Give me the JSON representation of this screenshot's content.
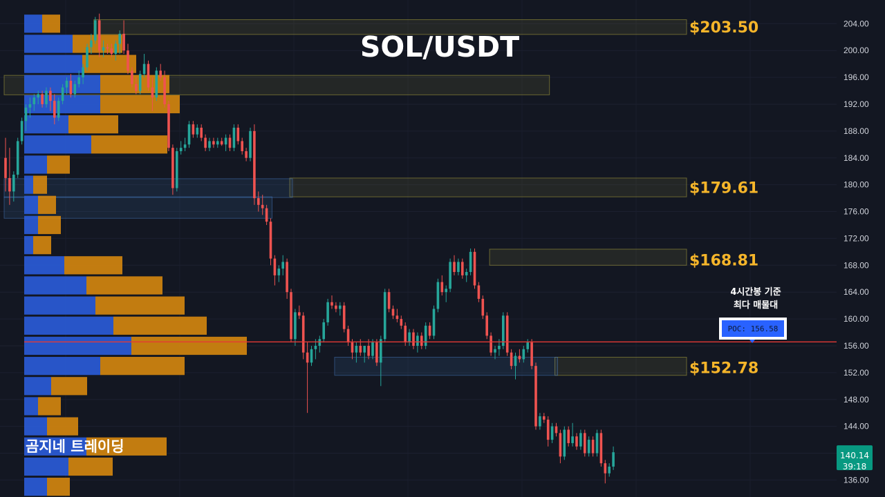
{
  "title": "SOL/USDT",
  "watermark": "곰지네 트레이딩",
  "poc": {
    "label": "POC: 156.58",
    "value": 156.58,
    "note_line1": "4시간봉 기준",
    "note_line2": "최다 매물대"
  },
  "current": {
    "price": "140.14",
    "countdown": "39:18",
    "value": 140.14
  },
  "colors": {
    "background": "#131722",
    "up": "#26a69a",
    "down": "#ef5350",
    "level_text": "#f5b52a",
    "poc_line": "#e53935",
    "poc_box": "#2962ff",
    "vp_buy": "#2a5bd7",
    "vp_sell": "#d6870e"
  },
  "chart_data": {
    "type": "candlestick",
    "y_axis": {
      "ylim": [
        134.5,
        206.5
      ],
      "ticks": [
        "204.00",
        "200.00",
        "196.00",
        "192.00",
        "188.00",
        "184.00",
        "180.00",
        "176.00",
        "172.00",
        "168.00",
        "164.00",
        "160.00",
        "156.00",
        "152.00",
        "148.00",
        "144.00",
        "140.00",
        "136.00"
      ]
    },
    "levels": [
      {
        "label": "$203.50",
        "value": 203.5
      },
      {
        "label": "$179.61",
        "value": 179.61
      },
      {
        "label": "$168.81",
        "value": 168.81
      },
      {
        "label": "$152.78",
        "value": 152.78
      }
    ],
    "zones": [
      {
        "kind": "gold",
        "low": 202.4,
        "high": 204.6,
        "start_bar": 22,
        "end_bar": 999
      },
      {
        "kind": "gold",
        "low": 193.4,
        "high": 196.3,
        "start_bar": 0,
        "end_bar": 133
      },
      {
        "kind": "gold",
        "low": 178.2,
        "high": 181.0,
        "start_bar": 70,
        "end_bar": 999
      },
      {
        "kind": "gold",
        "low": 168.0,
        "high": 170.4,
        "start_bar": 119,
        "end_bar": 999
      },
      {
        "kind": "gold",
        "low": 151.6,
        "high": 154.3,
        "start_bar": 135,
        "end_bar": 999
      },
      {
        "kind": "blue",
        "low": 178.1,
        "high": 180.9,
        "start_bar": 0,
        "end_bar": 70
      },
      {
        "kind": "blue",
        "low": 175.0,
        "high": 178.2,
        "start_bar": 0,
        "end_bar": 65
      },
      {
        "kind": "blue",
        "low": 151.6,
        "high": 154.3,
        "start_bar": 81,
        "end_bar": 135
      }
    ],
    "volume_profile": [
      {
        "price": 204.0,
        "buy": 26,
        "sell": 26
      },
      {
        "price": 201.0,
        "buy": 70,
        "sell": 72
      },
      {
        "price": 198.0,
        "buy": 84,
        "sell": 78
      },
      {
        "price": 195.0,
        "buy": 110,
        "sell": 100
      },
      {
        "price": 192.0,
        "buy": 110,
        "sell": 115
      },
      {
        "price": 189.0,
        "buy": 64,
        "sell": 72
      },
      {
        "price": 186.0,
        "buy": 97,
        "sell": 110
      },
      {
        "price": 183.0,
        "buy": 33,
        "sell": 33
      },
      {
        "price": 180.0,
        "buy": 13,
        "sell": 20
      },
      {
        "price": 177.0,
        "buy": 20,
        "sell": 26
      },
      {
        "price": 174.0,
        "buy": 20,
        "sell": 33
      },
      {
        "price": 171.0,
        "buy": 13,
        "sell": 26
      },
      {
        "price": 168.0,
        "buy": 58,
        "sell": 84
      },
      {
        "price": 165.0,
        "buy": 90,
        "sell": 110
      },
      {
        "price": 162.0,
        "buy": 103,
        "sell": 129
      },
      {
        "price": 159.0,
        "buy": 129,
        "sell": 135
      },
      {
        "price": 156.0,
        "buy": 155,
        "sell": 167
      },
      {
        "price": 153.0,
        "buy": 110,
        "sell": 122
      },
      {
        "price": 150.0,
        "buy": 39,
        "sell": 52
      },
      {
        "price": 147.0,
        "buy": 20,
        "sell": 33
      },
      {
        "price": 144.0,
        "buy": 33,
        "sell": 45
      },
      {
        "price": 141.0,
        "buy": 90,
        "sell": 116
      },
      {
        "price": 138.0,
        "buy": 64,
        "sell": 64
      },
      {
        "price": 135.0,
        "buy": 33,
        "sell": 33
      }
    ],
    "candles": [
      [
        184.0,
        187.0,
        179.0,
        181.0
      ],
      [
        181.0,
        185.5,
        177.0,
        179.0
      ],
      [
        179.0,
        182.0,
        177.5,
        181.5
      ],
      [
        181.5,
        187.0,
        181.0,
        186.5
      ],
      [
        186.5,
        190.0,
        186.0,
        189.5
      ],
      [
        189.5,
        192.0,
        188.0,
        191.5
      ],
      [
        191.5,
        193.0,
        190.0,
        192.0
      ],
      [
        192.0,
        193.5,
        191.0,
        193.0
      ],
      [
        193.0,
        194.0,
        192.0,
        193.5
      ],
      [
        193.5,
        194.0,
        191.5,
        192.0
      ],
      [
        192.0,
        194.5,
        191.5,
        194.0
      ],
      [
        194.0,
        194.5,
        191.0,
        192.5
      ],
      [
        192.5,
        193.5,
        189.0,
        190.0
      ],
      [
        190.0,
        193.0,
        189.5,
        192.5
      ],
      [
        192.5,
        195.0,
        192.0,
        194.5
      ],
      [
        194.5,
        196.0,
        193.5,
        195.5
      ],
      [
        195.5,
        196.5,
        193.0,
        193.5
      ],
      [
        193.5,
        195.5,
        193.0,
        195.0
      ],
      [
        195.0,
        197.0,
        194.5,
        196.0
      ],
      [
        196.0,
        198.0,
        195.0,
        197.5
      ],
      [
        197.5,
        201.0,
        197.0,
        200.5
      ],
      [
        200.5,
        202.5,
        199.5,
        201.5
      ],
      [
        201.5,
        205.0,
        201.0,
        204.5
      ],
      [
        204.5,
        205.5,
        199.0,
        200.0
      ],
      [
        200.0,
        201.5,
        199.0,
        200.5
      ],
      [
        200.5,
        201.0,
        199.5,
        200.3
      ],
      [
        200.3,
        201.0,
        199.0,
        199.5
      ],
      [
        199.5,
        201.5,
        198.5,
        201.0
      ],
      [
        201.0,
        203.0,
        199.5,
        202.5
      ],
      [
        202.5,
        204.5,
        199.5,
        200.0
      ],
      [
        200.0,
        201.0,
        196.5,
        197.0
      ],
      [
        197.0,
        197.5,
        194.5,
        195.0
      ],
      [
        195.0,
        196.0,
        193.5,
        194.0
      ],
      [
        194.0,
        197.0,
        193.5,
        196.5
      ],
      [
        196.5,
        199.5,
        196.0,
        198.0
      ],
      [
        198.0,
        198.5,
        194.0,
        194.5
      ],
      [
        194.5,
        196.0,
        191.0,
        193.0
      ],
      [
        193.0,
        197.5,
        192.5,
        197.0
      ],
      [
        197.0,
        198.0,
        195.5,
        196.0
      ],
      [
        196.0,
        197.0,
        191.5,
        192.0
      ],
      [
        192.0,
        192.5,
        185.0,
        185.5
      ],
      [
        185.5,
        186.0,
        178.5,
        179.5
      ],
      [
        179.5,
        185.5,
        179.0,
        185.0
      ],
      [
        185.0,
        186.5,
        184.5,
        185.5
      ],
      [
        185.5,
        187.0,
        185.0,
        186.0
      ],
      [
        186.0,
        189.5,
        185.5,
        189.0
      ],
      [
        189.0,
        189.5,
        187.0,
        187.5
      ],
      [
        187.5,
        189.0,
        187.0,
        188.5
      ],
      [
        188.5,
        189.0,
        186.5,
        187.0
      ],
      [
        187.0,
        187.5,
        185.0,
        185.5
      ],
      [
        185.5,
        187.0,
        185.0,
        186.5
      ],
      [
        186.5,
        187.0,
        185.5,
        186.0
      ],
      [
        186.0,
        187.0,
        185.5,
        186.5
      ],
      [
        186.5,
        187.0,
        185.8,
        186.0
      ],
      [
        186.0,
        187.5,
        185.0,
        187.0
      ],
      [
        187.0,
        187.5,
        185.0,
        185.5
      ],
      [
        185.5,
        189.0,
        185.0,
        188.5
      ],
      [
        188.5,
        189.0,
        186.0,
        186.5
      ],
      [
        186.5,
        187.0,
        184.5,
        185.0
      ],
      [
        185.0,
        185.5,
        183.5,
        184.0
      ],
      [
        184.0,
        188.5,
        183.5,
        188.0
      ],
      [
        188.0,
        189.0,
        177.0,
        178.0
      ],
      [
        178.0,
        179.0,
        176.0,
        177.0
      ],
      [
        177.0,
        178.5,
        175.5,
        176.5
      ],
      [
        176.5,
        177.0,
        174.0,
        174.5
      ],
      [
        174.5,
        175.0,
        168.0,
        169.0
      ],
      [
        169.0,
        169.5,
        165.0,
        166.5
      ],
      [
        166.5,
        168.0,
        165.5,
        167.5
      ],
      [
        167.5,
        169.5,
        166.5,
        168.5
      ],
      [
        168.5,
        169.0,
        163.0,
        164.0
      ],
      [
        164.0,
        164.5,
        156.5,
        157.0
      ],
      [
        157.0,
        161.5,
        156.0,
        161.0
      ],
      [
        161.0,
        162.0,
        160.0,
        160.5
      ],
      [
        160.5,
        161.0,
        154.0,
        155.0
      ],
      [
        155.0,
        156.5,
        146.0,
        153.5
      ],
      [
        153.5,
        156.0,
        153.0,
        155.5
      ],
      [
        155.5,
        157.0,
        154.0,
        156.0
      ],
      [
        156.0,
        157.5,
        155.0,
        157.0
      ],
      [
        157.0,
        160.0,
        156.5,
        159.5
      ],
      [
        159.5,
        163.0,
        159.0,
        162.5
      ],
      [
        162.5,
        163.5,
        161.5,
        162.0
      ],
      [
        162.0,
        162.5,
        161.0,
        161.5
      ],
      [
        161.5,
        162.5,
        160.5,
        162.0
      ],
      [
        162.0,
        162.5,
        158.0,
        158.5
      ],
      [
        158.5,
        159.0,
        156.0,
        156.5
      ],
      [
        156.5,
        157.0,
        154.0,
        155.0
      ],
      [
        155.0,
        156.5,
        153.5,
        156.0
      ],
      [
        156.0,
        157.0,
        154.5,
        155.0
      ],
      [
        155.0,
        156.0,
        153.5,
        156.0
      ],
      [
        156.0,
        157.0,
        154.0,
        154.5
      ],
      [
        154.5,
        157.0,
        154.0,
        156.5
      ],
      [
        156.5,
        157.0,
        153.0,
        153.5
      ],
      [
        153.5,
        157.5,
        150.0,
        157.0
      ],
      [
        157.0,
        164.5,
        156.5,
        164.0
      ],
      [
        164.0,
        164.5,
        161.0,
        161.5
      ],
      [
        161.5,
        162.0,
        160.0,
        160.5
      ],
      [
        160.5,
        161.5,
        159.5,
        160.0
      ],
      [
        160.0,
        160.5,
        158.5,
        159.0
      ],
      [
        159.0,
        159.5,
        156.0,
        156.5
      ],
      [
        156.5,
        158.5,
        156.0,
        158.0
      ],
      [
        158.0,
        158.5,
        155.5,
        156.0
      ],
      [
        156.0,
        158.0,
        155.0,
        157.5
      ],
      [
        157.5,
        158.0,
        155.5,
        156.0
      ],
      [
        156.0,
        159.5,
        155.5,
        159.0
      ],
      [
        159.0,
        159.5,
        157.0,
        157.5
      ],
      [
        157.5,
        162.0,
        157.0,
        161.5
      ],
      [
        161.5,
        166.0,
        161.0,
        165.5
      ],
      [
        165.5,
        166.5,
        163.5,
        164.0
      ],
      [
        164.0,
        165.0,
        162.5,
        164.5
      ],
      [
        164.5,
        169.0,
        164.0,
        168.5
      ],
      [
        168.5,
        169.5,
        166.5,
        167.0
      ],
      [
        167.0,
        169.0,
        166.5,
        168.5
      ],
      [
        168.5,
        169.0,
        166.0,
        166.5
      ],
      [
        166.5,
        167.5,
        165.5,
        167.0
      ],
      [
        167.0,
        170.5,
        166.5,
        170.0
      ],
      [
        170.0,
        170.5,
        164.5,
        165.0
      ],
      [
        165.0,
        165.5,
        162.5,
        163.0
      ],
      [
        163.0,
        163.5,
        160.0,
        160.5
      ],
      [
        160.5,
        161.0,
        157.0,
        157.5
      ],
      [
        157.5,
        158.0,
        154.5,
        155.0
      ],
      [
        155.0,
        156.0,
        154.0,
        155.5
      ],
      [
        155.5,
        157.0,
        154.5,
        156.0
      ],
      [
        156.0,
        161.0,
        155.5,
        160.5
      ],
      [
        160.5,
        161.0,
        154.5,
        155.0
      ],
      [
        155.0,
        155.5,
        152.5,
        153.0
      ],
      [
        153.0,
        155.0,
        151.0,
        154.5
      ],
      [
        154.5,
        155.5,
        153.5,
        154.0
      ],
      [
        154.0,
        156.0,
        153.5,
        155.5
      ],
      [
        155.5,
        157.0,
        155.0,
        156.5
      ],
      [
        156.5,
        157.0,
        152.5,
        153.0
      ],
      [
        153.0,
        153.5,
        143.5,
        144.0
      ],
      [
        144.0,
        146.0,
        143.5,
        145.5
      ],
      [
        145.5,
        146.0,
        144.5,
        145.0
      ],
      [
        145.0,
        145.5,
        141.0,
        142.0
      ],
      [
        142.0,
        144.5,
        141.5,
        144.0
      ],
      [
        144.0,
        144.5,
        142.5,
        143.0
      ],
      [
        143.0,
        143.5,
        138.5,
        139.5
      ],
      [
        139.5,
        144.0,
        139.0,
        143.5
      ],
      [
        143.5,
        144.0,
        141.0,
        141.5
      ],
      [
        141.5,
        144.5,
        141.0,
        142.5
      ],
      [
        142.5,
        143.0,
        140.5,
        141.0
      ],
      [
        141.0,
        143.5,
        140.5,
        143.0
      ],
      [
        143.0,
        143.5,
        139.5,
        140.0
      ],
      [
        140.0,
        142.5,
        139.5,
        142.0
      ],
      [
        142.0,
        142.5,
        139.5,
        140.0
      ],
      [
        140.0,
        143.5,
        139.5,
        143.0
      ],
      [
        143.0,
        143.5,
        138.0,
        138.5
      ],
      [
        138.5,
        139.0,
        135.5,
        137.0
      ],
      [
        137.0,
        138.5,
        136.5,
        138.0
      ],
      [
        138.0,
        141.0,
        137.5,
        140.14
      ]
    ]
  }
}
